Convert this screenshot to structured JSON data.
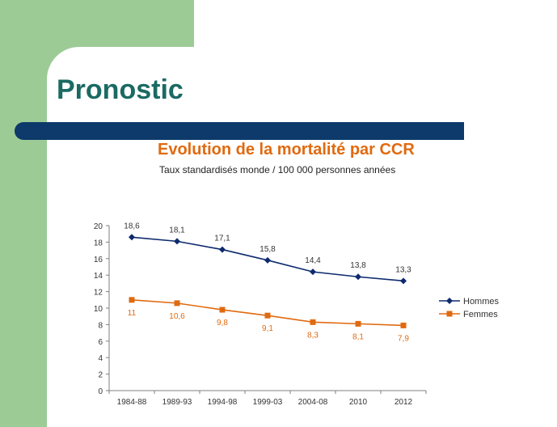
{
  "slide": {
    "title": "Pronostic"
  },
  "chart_data": {
    "type": "line",
    "title": "Evolution de la mortalité par CCR",
    "subtitle": "Taux standardisés monde / 100 000 personnes années",
    "categories": [
      "1984-88",
      "1989-93",
      "1994-98",
      "1999-03",
      "2004-08",
      "2010",
      "2012"
    ],
    "series": [
      {
        "name": "Hommes",
        "values": [
          18.6,
          18.1,
          17.1,
          15.8,
          14.4,
          13.8,
          13.3
        ],
        "labels": [
          "18,6",
          "18,1",
          "17,1",
          "15,8",
          "14,4",
          "13,8",
          "13,3"
        ],
        "color": "#0d2a6e",
        "marker": "diamond"
      },
      {
        "name": "Femmes",
        "values": [
          11,
          10.6,
          9.8,
          9.1,
          8.3,
          8.1,
          7.9
        ],
        "labels": [
          "11",
          "10,6",
          "9,8",
          "9,1",
          "8,3",
          "8,1",
          "7,9"
        ],
        "color": "#e06a10",
        "marker": "square"
      }
    ],
    "ylim": [
      0,
      20
    ],
    "yticks": [
      0,
      2,
      4,
      6,
      8,
      10,
      12,
      14,
      16,
      18,
      20
    ],
    "grid": false,
    "legend": "right"
  },
  "colors": {
    "background_green": "#9ccb96",
    "title_teal": "#1a6a63",
    "banner_navy": "#0d3a6a",
    "chart_title_orange": "#e06a10"
  }
}
